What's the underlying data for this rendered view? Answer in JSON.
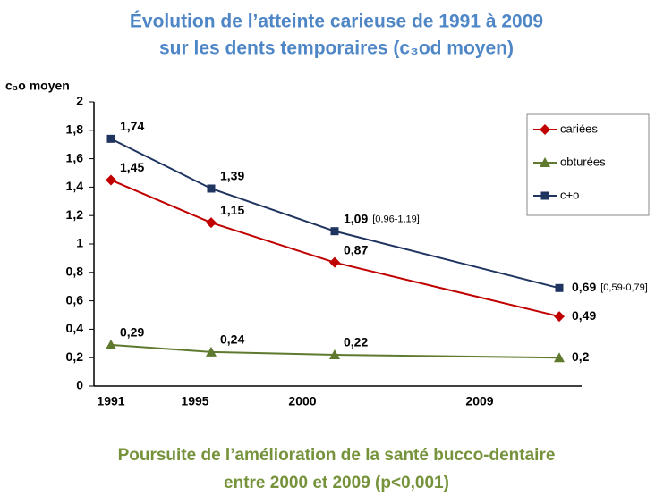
{
  "chart_data": {
    "type": "line",
    "title": [
      "Évolution de l’atteinte carieuse de 1991 à 2009",
      "sur les dents temporaires (c₃od moyen)"
    ],
    "ylabel": "c₃o moyen",
    "categories": [
      "1991",
      "1995",
      "2000",
      "2009"
    ],
    "ylim": [
      0,
      2
    ],
    "yticks": [
      0,
      {
        "value": 0.2,
        "label": "0,2"
      },
      {
        "value": 0.4,
        "label": "0,4"
      },
      {
        "value": 0.6,
        "label": "0,6"
      },
      {
        "value": 0.8,
        "label": "0,8"
      },
      1,
      {
        "value": 1.2,
        "label": "1,2"
      },
      {
        "value": 1.4,
        "label": "1,4"
      },
      {
        "value": 1.6,
        "label": "1,6"
      },
      {
        "value": 1.8,
        "label": "1,8"
      },
      2
    ],
    "grid": false,
    "legend": "upper right",
    "series": [
      {
        "name": "cariées",
        "color": "#c00000",
        "marker": "diamond",
        "values": [
          1.45,
          1.15,
          0.87,
          0.49
        ],
        "value_labels": [
          "1,45",
          "1,15",
          "0,87",
          "0,49"
        ]
      },
      {
        "name": "obturées",
        "color": "#5f7a2e",
        "marker": "triangle",
        "values": [
          0.29,
          0.24,
          0.22,
          0.2
        ],
        "value_labels": [
          "0,29",
          "0,24",
          "0,22",
          "0,2"
        ]
      },
      {
        "name": "c+o",
        "color": "#1f3560",
        "marker": "square",
        "values": [
          1.74,
          1.39,
          1.09,
          0.69
        ],
        "value_labels": [
          "1,74",
          "1,39",
          "1,09",
          "0,69"
        ],
        "value_notes": [
          null,
          null,
          "[0,96-1,19]",
          "[0,59-0,79]"
        ]
      }
    ],
    "footer": [
      "Poursuite de l’amélioration de la santé bucco-dentaire",
      "entre 2000 et 2009 (p<0,001)"
    ]
  }
}
